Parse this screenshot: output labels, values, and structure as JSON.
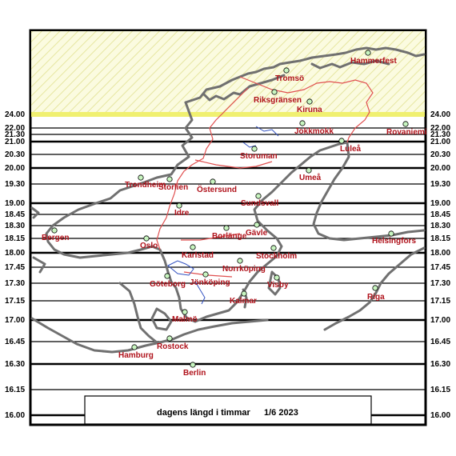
{
  "caption": {
    "title": "dagens längd i timmar",
    "date": "1/6 2023"
  },
  "colors": {
    "coast": "#707070",
    "border": "#e05050",
    "lake": "#3050c0",
    "city_label": "#b0121b",
    "city_marker": "#c8f5c0",
    "midnight_sun": "#f8f8c8",
    "midnight_line": "#f0f070"
  },
  "ticks": [
    "24.00",
    "22.00",
    "21.30",
    "21.00",
    "20.30",
    "20.00",
    "19.30",
    "19.00",
    "18.45",
    "18.30",
    "18.15",
    "18.00",
    "17.45",
    "17.30",
    "17.15",
    "17.00",
    "16.45",
    "16.30",
    "16.15",
    "16.00"
  ],
  "cities": [
    {
      "name": "Hammerfest"
    },
    {
      "name": "Tromsö"
    },
    {
      "name": "Riksgränsen"
    },
    {
      "name": "Kiruna"
    },
    {
      "name": "Jokkmokk"
    },
    {
      "name": "Rovaniemi"
    },
    {
      "name": "Luleå"
    },
    {
      "name": "Storuman"
    },
    {
      "name": "Umeå"
    },
    {
      "name": "Trondheim"
    },
    {
      "name": "Storlien"
    },
    {
      "name": "Östersund"
    },
    {
      "name": "Sundsvall"
    },
    {
      "name": "Idre"
    },
    {
      "name": "Bergen"
    },
    {
      "name": "Borlänge"
    },
    {
      "name": "Gävle"
    },
    {
      "name": "Helsingfors"
    },
    {
      "name": "Oslo"
    },
    {
      "name": "Karlstad"
    },
    {
      "name": "Stockholm"
    },
    {
      "name": "Norrköping"
    },
    {
      "name": "Göteborg"
    },
    {
      "name": "Jönköping"
    },
    {
      "name": "Visby"
    },
    {
      "name": "Riga"
    },
    {
      "name": "Kalmar"
    },
    {
      "name": "Malmö"
    },
    {
      "name": "Rostock"
    },
    {
      "name": "Hamburg"
    },
    {
      "name": "Berlin"
    }
  ]
}
